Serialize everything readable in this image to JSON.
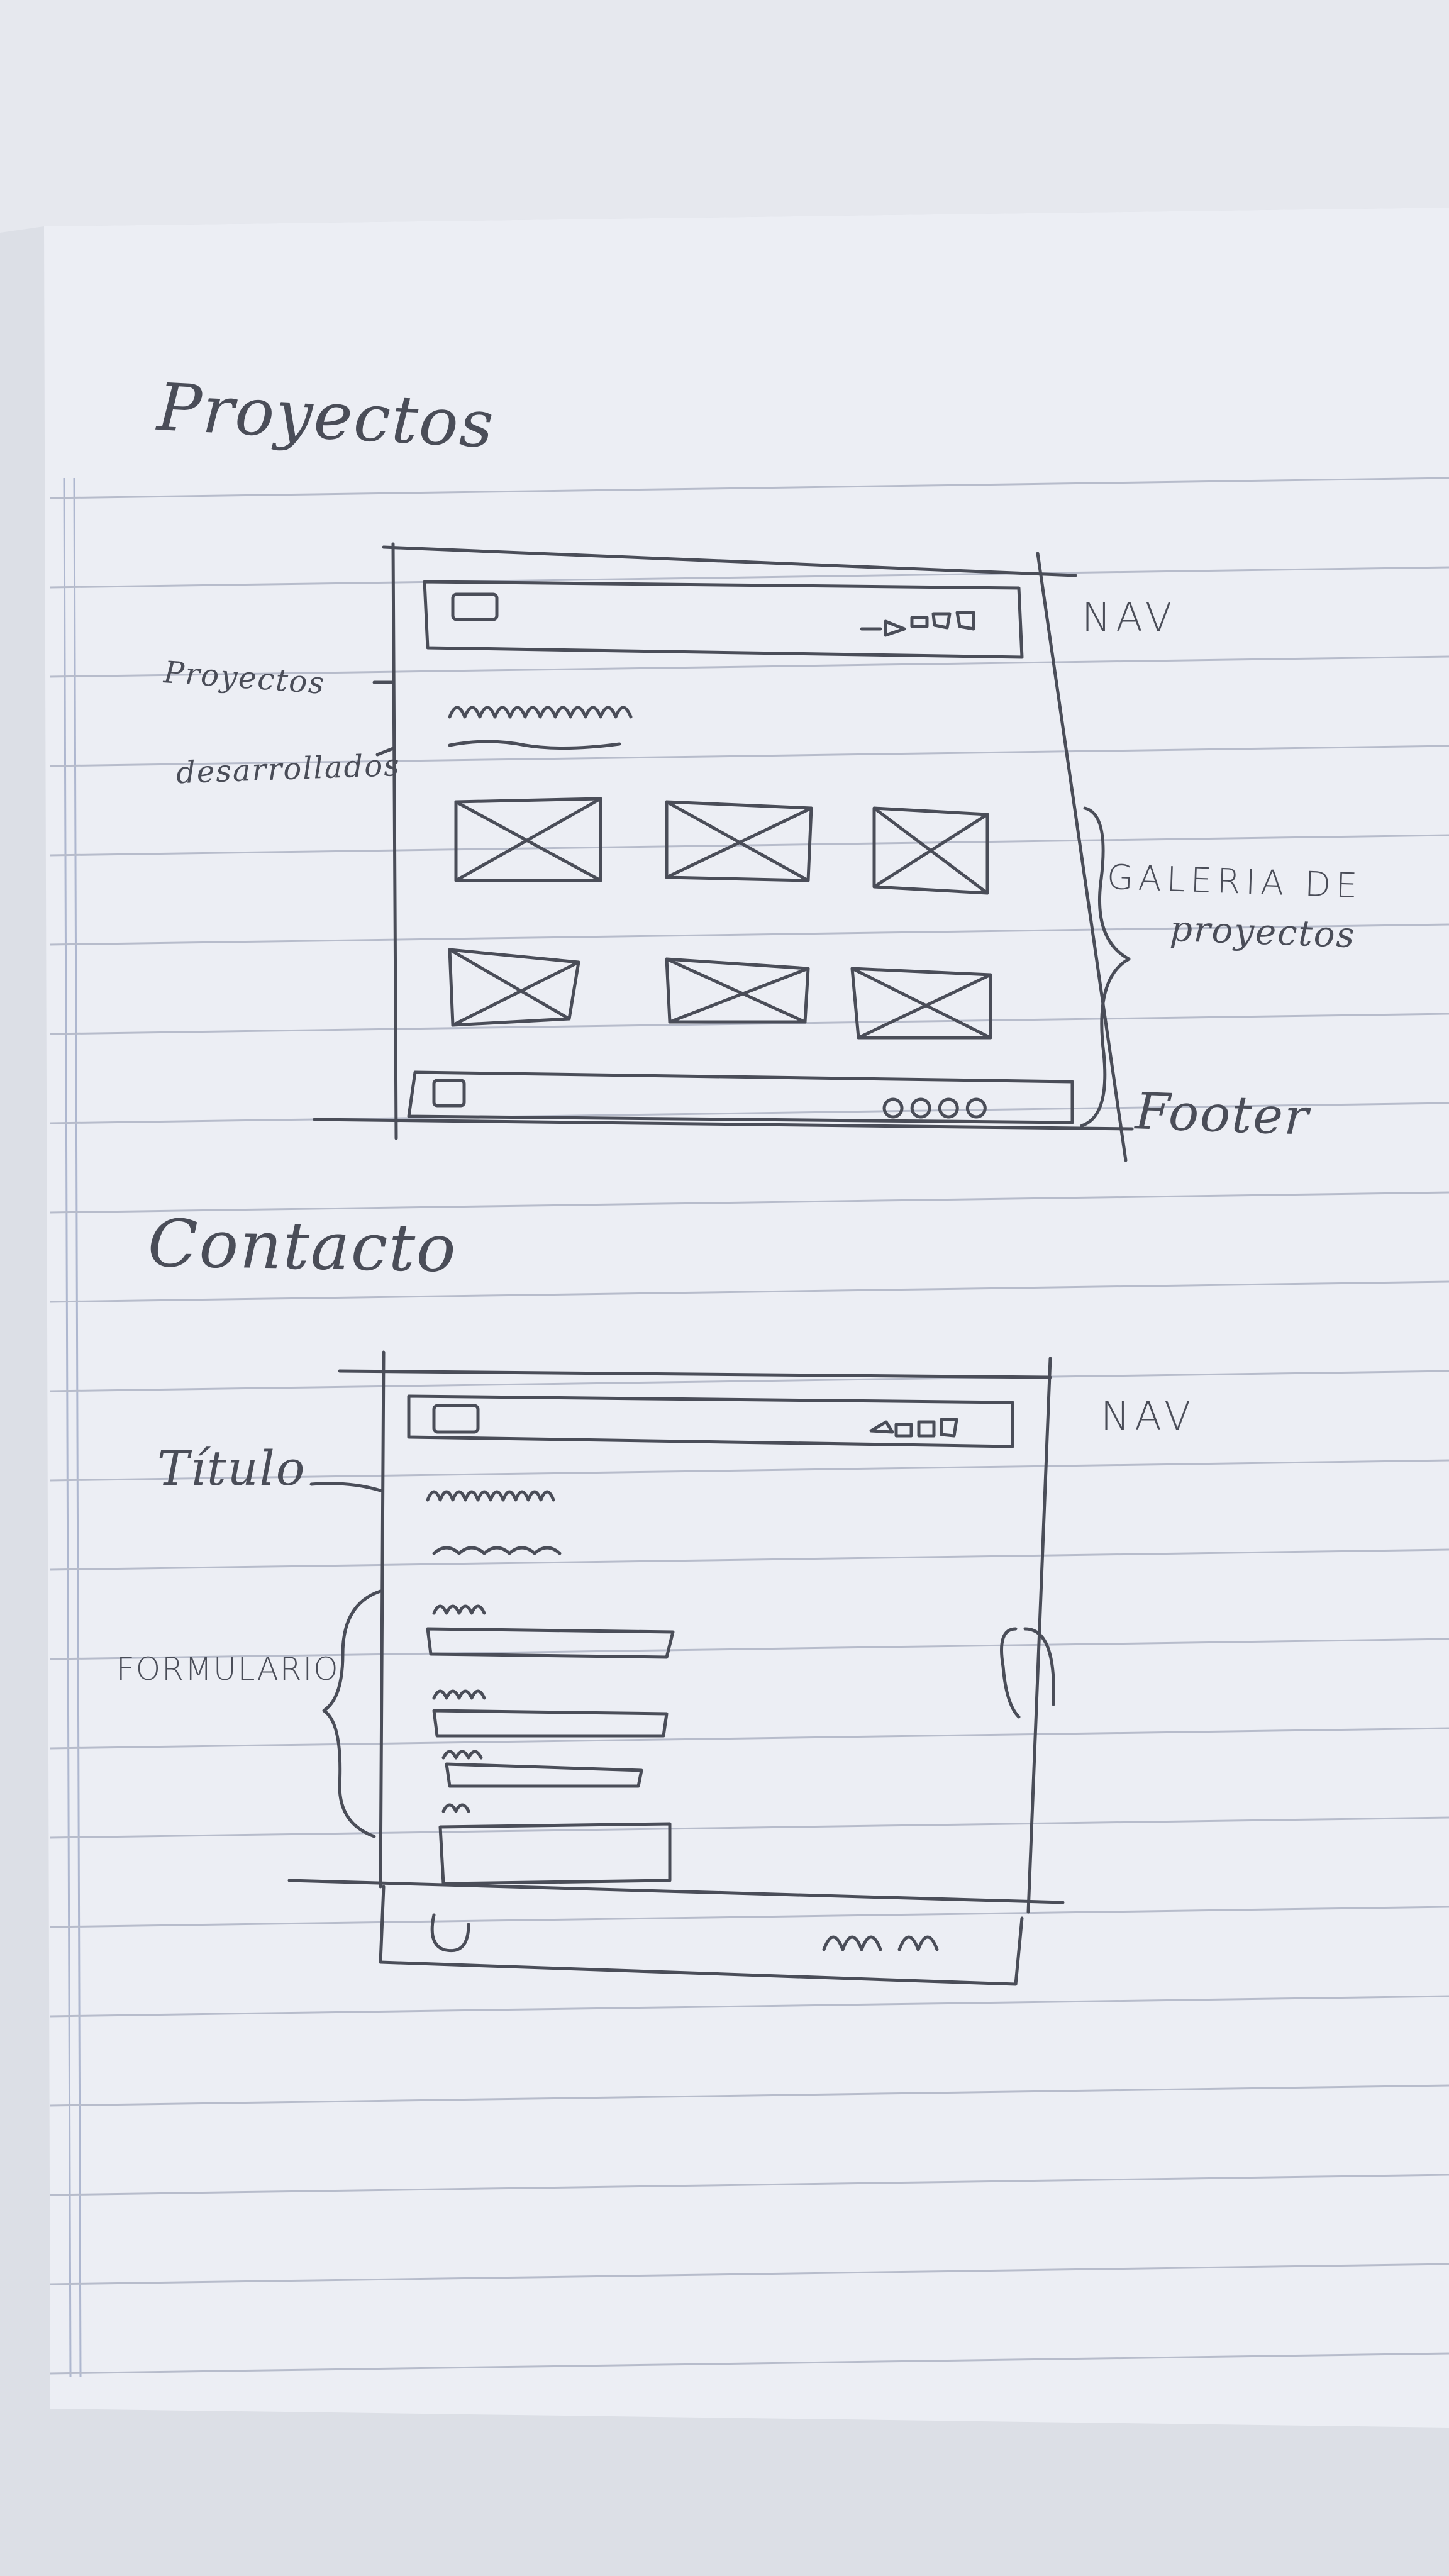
{
  "notebook": {
    "paper_color": "#eceef4",
    "rule_color": "#b7bccb",
    "ink_color": "#4a4d58"
  },
  "proyectos": {
    "heading": "Proyectos",
    "nav_label": "NAV",
    "left_label_line1": "Proyectos",
    "left_label_line2": "desarrollados",
    "gallery_label_line1": "GALERIA DE",
    "gallery_label_line2": "proyectos",
    "footer_label": "Footer",
    "gallery_rows": 2,
    "gallery_cols": 3
  },
  "contacto": {
    "heading": "Contacto",
    "nav_label": "NAV",
    "title_label": "Título",
    "form_label": "FORMULARIO",
    "form_fields": 4
  }
}
